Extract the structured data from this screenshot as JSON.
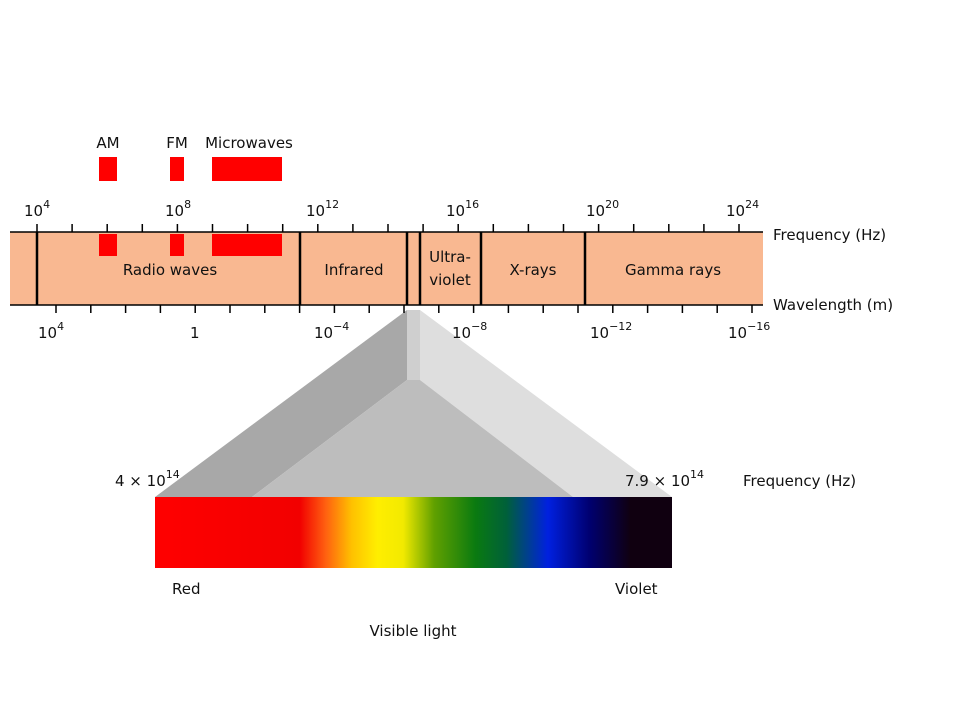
{
  "bands": {
    "am": "AM",
    "fm": "FM",
    "microwaves": "Microwaves"
  },
  "frequency_axis": {
    "label": "Frequency (Hz)",
    "ticks": [
      {
        "base": "10",
        "exp": "4"
      },
      {
        "base": "10",
        "exp": "8"
      },
      {
        "base": "10",
        "exp": "12"
      },
      {
        "base": "10",
        "exp": "16"
      },
      {
        "base": "10",
        "exp": "20"
      },
      {
        "base": "10",
        "exp": "24"
      }
    ]
  },
  "wavelength_axis": {
    "label": "Wavelength (m)",
    "ticks": [
      {
        "base": "10",
        "exp": "4"
      },
      {
        "base": "1"
      },
      {
        "base": "10",
        "exp": "−4"
      },
      {
        "base": "10",
        "exp": "−8"
      },
      {
        "base": "10",
        "exp": "−12"
      },
      {
        "base": "10",
        "exp": "−16"
      }
    ]
  },
  "regions": {
    "radio": "Radio waves",
    "infrared": "Infrared",
    "ultraviolet": [
      "Ultra-",
      "violet"
    ],
    "xrays": "X-rays",
    "gamma": "Gamma rays"
  },
  "visible": {
    "low": {
      "base": "4 × 10",
      "exp": "14"
    },
    "high": {
      "base": "7.9 × 10",
      "exp": "14"
    },
    "frequency_label": "Frequency (Hz)",
    "red": "Red",
    "violet": "Violet",
    "title": "Visible light"
  }
}
